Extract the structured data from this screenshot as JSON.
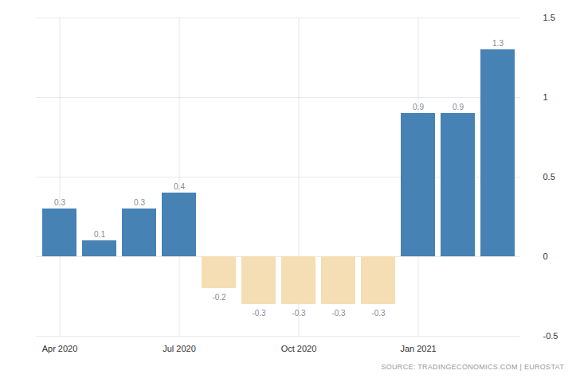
{
  "chart_data": {
    "type": "bar",
    "categories": [
      "Apr 2020",
      null,
      null,
      "Jul 2020",
      null,
      null,
      "Oct 2020",
      null,
      null,
      "Jan 2021",
      null,
      null
    ],
    "values": [
      0.3,
      0.1,
      0.3,
      0.4,
      -0.2,
      -0.3,
      -0.3,
      -0.3,
      -0.3,
      0.9,
      0.9,
      1.3
    ],
    "colors": [
      "#4682b4",
      "#4682b4",
      "#4682b4",
      "#4682b4",
      "#f5deb3",
      "#f5deb3",
      "#f5deb3",
      "#f5deb3",
      "#f5deb3",
      "#4682b4",
      "#4682b4",
      "#4682b4"
    ],
    "ylim": [
      -0.5,
      1.5
    ],
    "yticks": [
      -0.5,
      0,
      0.5,
      1,
      1.5
    ],
    "grid": true,
    "data_labels": true,
    "source": "SOURCE: TRADINGECONOMICS.COM | EUROSTAT"
  }
}
